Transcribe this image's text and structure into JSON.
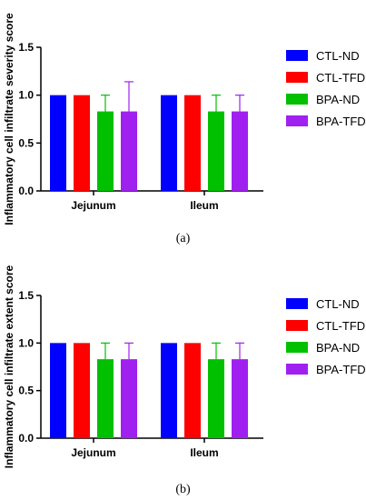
{
  "series_colors": [
    "#0000ff",
    "#ff0000",
    "#00c000",
    "#a020f0"
  ],
  "chart_data": [
    {
      "type": "bar",
      "caption": "(a)",
      "ylabel": "Inflammatory cell infiltrate severity score",
      "xlabel": "",
      "ylim": [
        0,
        1.5
      ],
      "yticks": [
        "0.0",
        "0.5",
        "1.0",
        "1.5"
      ],
      "categories": [
        "Jejunum",
        "Ileum"
      ],
      "legend_position": "right",
      "series": [
        {
          "name": "CTL-ND",
          "values": [
            1.0,
            1.0
          ],
          "errors": [
            0,
            0
          ]
        },
        {
          "name": "CTL-TFD",
          "values": [
            1.0,
            1.0
          ],
          "errors": [
            0,
            0
          ]
        },
        {
          "name": "BPA-ND",
          "values": [
            0.83,
            0.83
          ],
          "errors": [
            0.17,
            0.17
          ]
        },
        {
          "name": "BPA-TFD",
          "values": [
            0.83,
            0.83
          ],
          "errors": [
            0.31,
            0.17
          ]
        }
      ]
    },
    {
      "type": "bar",
      "caption": "(b)",
      "ylabel": "Inflammatory cell infiltrate extent score",
      "xlabel": "",
      "ylim": [
        0,
        1.5
      ],
      "yticks": [
        "0.0",
        "0.5",
        "1.0",
        "1.5"
      ],
      "categories": [
        "Jejunum",
        "Ileum"
      ],
      "legend_position": "right",
      "series": [
        {
          "name": "CTL-ND",
          "values": [
            1.0,
            1.0
          ],
          "errors": [
            0,
            0
          ]
        },
        {
          "name": "CTL-TFD",
          "values": [
            1.0,
            1.0
          ],
          "errors": [
            0,
            0
          ]
        },
        {
          "name": "BPA-ND",
          "values": [
            0.83,
            0.83
          ],
          "errors": [
            0.17,
            0.17
          ]
        },
        {
          "name": "BPA-TFD",
          "values": [
            0.83,
            0.83
          ],
          "errors": [
            0.17,
            0.17
          ]
        }
      ]
    }
  ]
}
